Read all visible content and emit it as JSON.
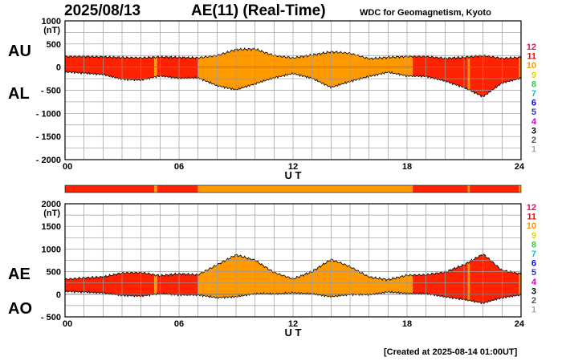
{
  "header": {
    "date": "2025/08/13",
    "title": "AE(11) (Real-Time)",
    "source": "WDC for Geomagnetism, Kyoto"
  },
  "footer": {
    "created": "[Created at 2025-08-14 01:00UT]"
  },
  "colors": {
    "quality_legend": [
      "#ff0066",
      "#ff0000",
      "#ff9900",
      "#dddd00",
      "#33cc33",
      "#00cccc",
      "#0000ff",
      "#3333aa",
      "#cc00cc",
      "#000000",
      "#555555",
      "#aaaaaa"
    ],
    "series_fill_11": "#ff2200",
    "series_fill_10": "#ff9900",
    "grid": "#9a9a9a"
  },
  "quality_legend": [
    "12",
    "11",
    "10",
    "9",
    "8",
    "7",
    "6",
    "5",
    "4",
    "3",
    "2",
    "1"
  ],
  "chart_data": [
    {
      "type": "area",
      "panel": "au-al",
      "series_labels": [
        "AU",
        "AL"
      ],
      "unit": "(nT)",
      "xlabel": "U T",
      "xlim": [
        0,
        24
      ],
      "x_ticks": [
        "00",
        "06",
        "12",
        "18",
        "24"
      ],
      "ylim": [
        -2000,
        1000
      ],
      "y_ticks": [
        "1000",
        "500",
        "0",
        "- 500",
        "- 1000",
        "- 1500",
        "- 2000"
      ],
      "grid": true,
      "x": [
        0,
        1,
        2,
        3,
        4,
        5,
        6,
        7,
        8,
        9,
        10,
        11,
        12,
        13,
        14,
        15,
        16,
        17,
        18,
        19,
        20,
        21,
        22,
        23,
        24
      ],
      "series": [
        {
          "name": "AU",
          "values": [
            230,
            230,
            220,
            210,
            200,
            220,
            210,
            200,
            250,
            380,
            390,
            250,
            200,
            260,
            330,
            300,
            180,
            210,
            230,
            230,
            190,
            210,
            250,
            190,
            210
          ]
        },
        {
          "name": "AL",
          "values": [
            -100,
            -130,
            -160,
            -260,
            -280,
            -190,
            -240,
            -230,
            -400,
            -490,
            -360,
            -230,
            -140,
            -240,
            -440,
            -310,
            -200,
            -110,
            -190,
            -200,
            -300,
            -440,
            -640,
            -340,
            -240
          ]
        }
      ],
      "quality_segments": [
        {
          "from": 0,
          "to": 4.7,
          "level": 11
        },
        {
          "from": 4.7,
          "to": 4.85,
          "level": 10
        },
        {
          "from": 4.85,
          "to": 7.0,
          "level": 11
        },
        {
          "from": 7.0,
          "to": 18.3,
          "level": 10
        },
        {
          "from": 18.3,
          "to": 21.2,
          "level": 11
        },
        {
          "from": 21.2,
          "to": 21.3,
          "level": 10
        },
        {
          "from": 21.3,
          "to": 23.9,
          "level": 11
        },
        {
          "from": 23.9,
          "to": 24.0,
          "level": 10
        }
      ]
    },
    {
      "type": "area",
      "panel": "ae-ao",
      "series_labels": [
        "AE",
        "AO"
      ],
      "unit": "(nT)",
      "xlabel": "U T",
      "xlim": [
        0,
        24
      ],
      "x_ticks": [
        "00",
        "06",
        "12",
        "18",
        "24"
      ],
      "ylim": [
        -500,
        2000
      ],
      "y_ticks": [
        "2000",
        "1500",
        "1000",
        "500",
        "0",
        "- 500"
      ],
      "grid": true,
      "x": [
        0,
        1,
        2,
        3,
        4,
        5,
        6,
        7,
        8,
        9,
        10,
        11,
        12,
        13,
        14,
        15,
        16,
        17,
        18,
        19,
        20,
        21,
        22,
        23,
        24
      ],
      "series": [
        {
          "name": "AE",
          "values": [
            330,
            360,
            380,
            470,
            480,
            410,
            450,
            430,
            650,
            870,
            750,
            480,
            340,
            500,
            770,
            610,
            380,
            320,
            420,
            430,
            490,
            650,
            890,
            530,
            450
          ]
        },
        {
          "name": "AO",
          "values": [
            65,
            50,
            30,
            -25,
            -40,
            15,
            -15,
            -15,
            -75,
            -55,
            15,
            10,
            30,
            10,
            -55,
            -5,
            -10,
            50,
            20,
            15,
            -55,
            -115,
            -195,
            -75,
            -15
          ]
        }
      ],
      "quality_segments": [
        {
          "from": 0,
          "to": 4.7,
          "level": 11
        },
        {
          "from": 4.7,
          "to": 4.85,
          "level": 10
        },
        {
          "from": 4.85,
          "to": 7.0,
          "level": 11
        },
        {
          "from": 7.0,
          "to": 18.3,
          "level": 10
        },
        {
          "from": 18.3,
          "to": 21.2,
          "level": 11
        },
        {
          "from": 21.2,
          "to": 21.3,
          "level": 10
        },
        {
          "from": 21.3,
          "to": 23.9,
          "level": 11
        },
        {
          "from": 23.9,
          "to": 24.0,
          "level": 10
        }
      ]
    }
  ]
}
